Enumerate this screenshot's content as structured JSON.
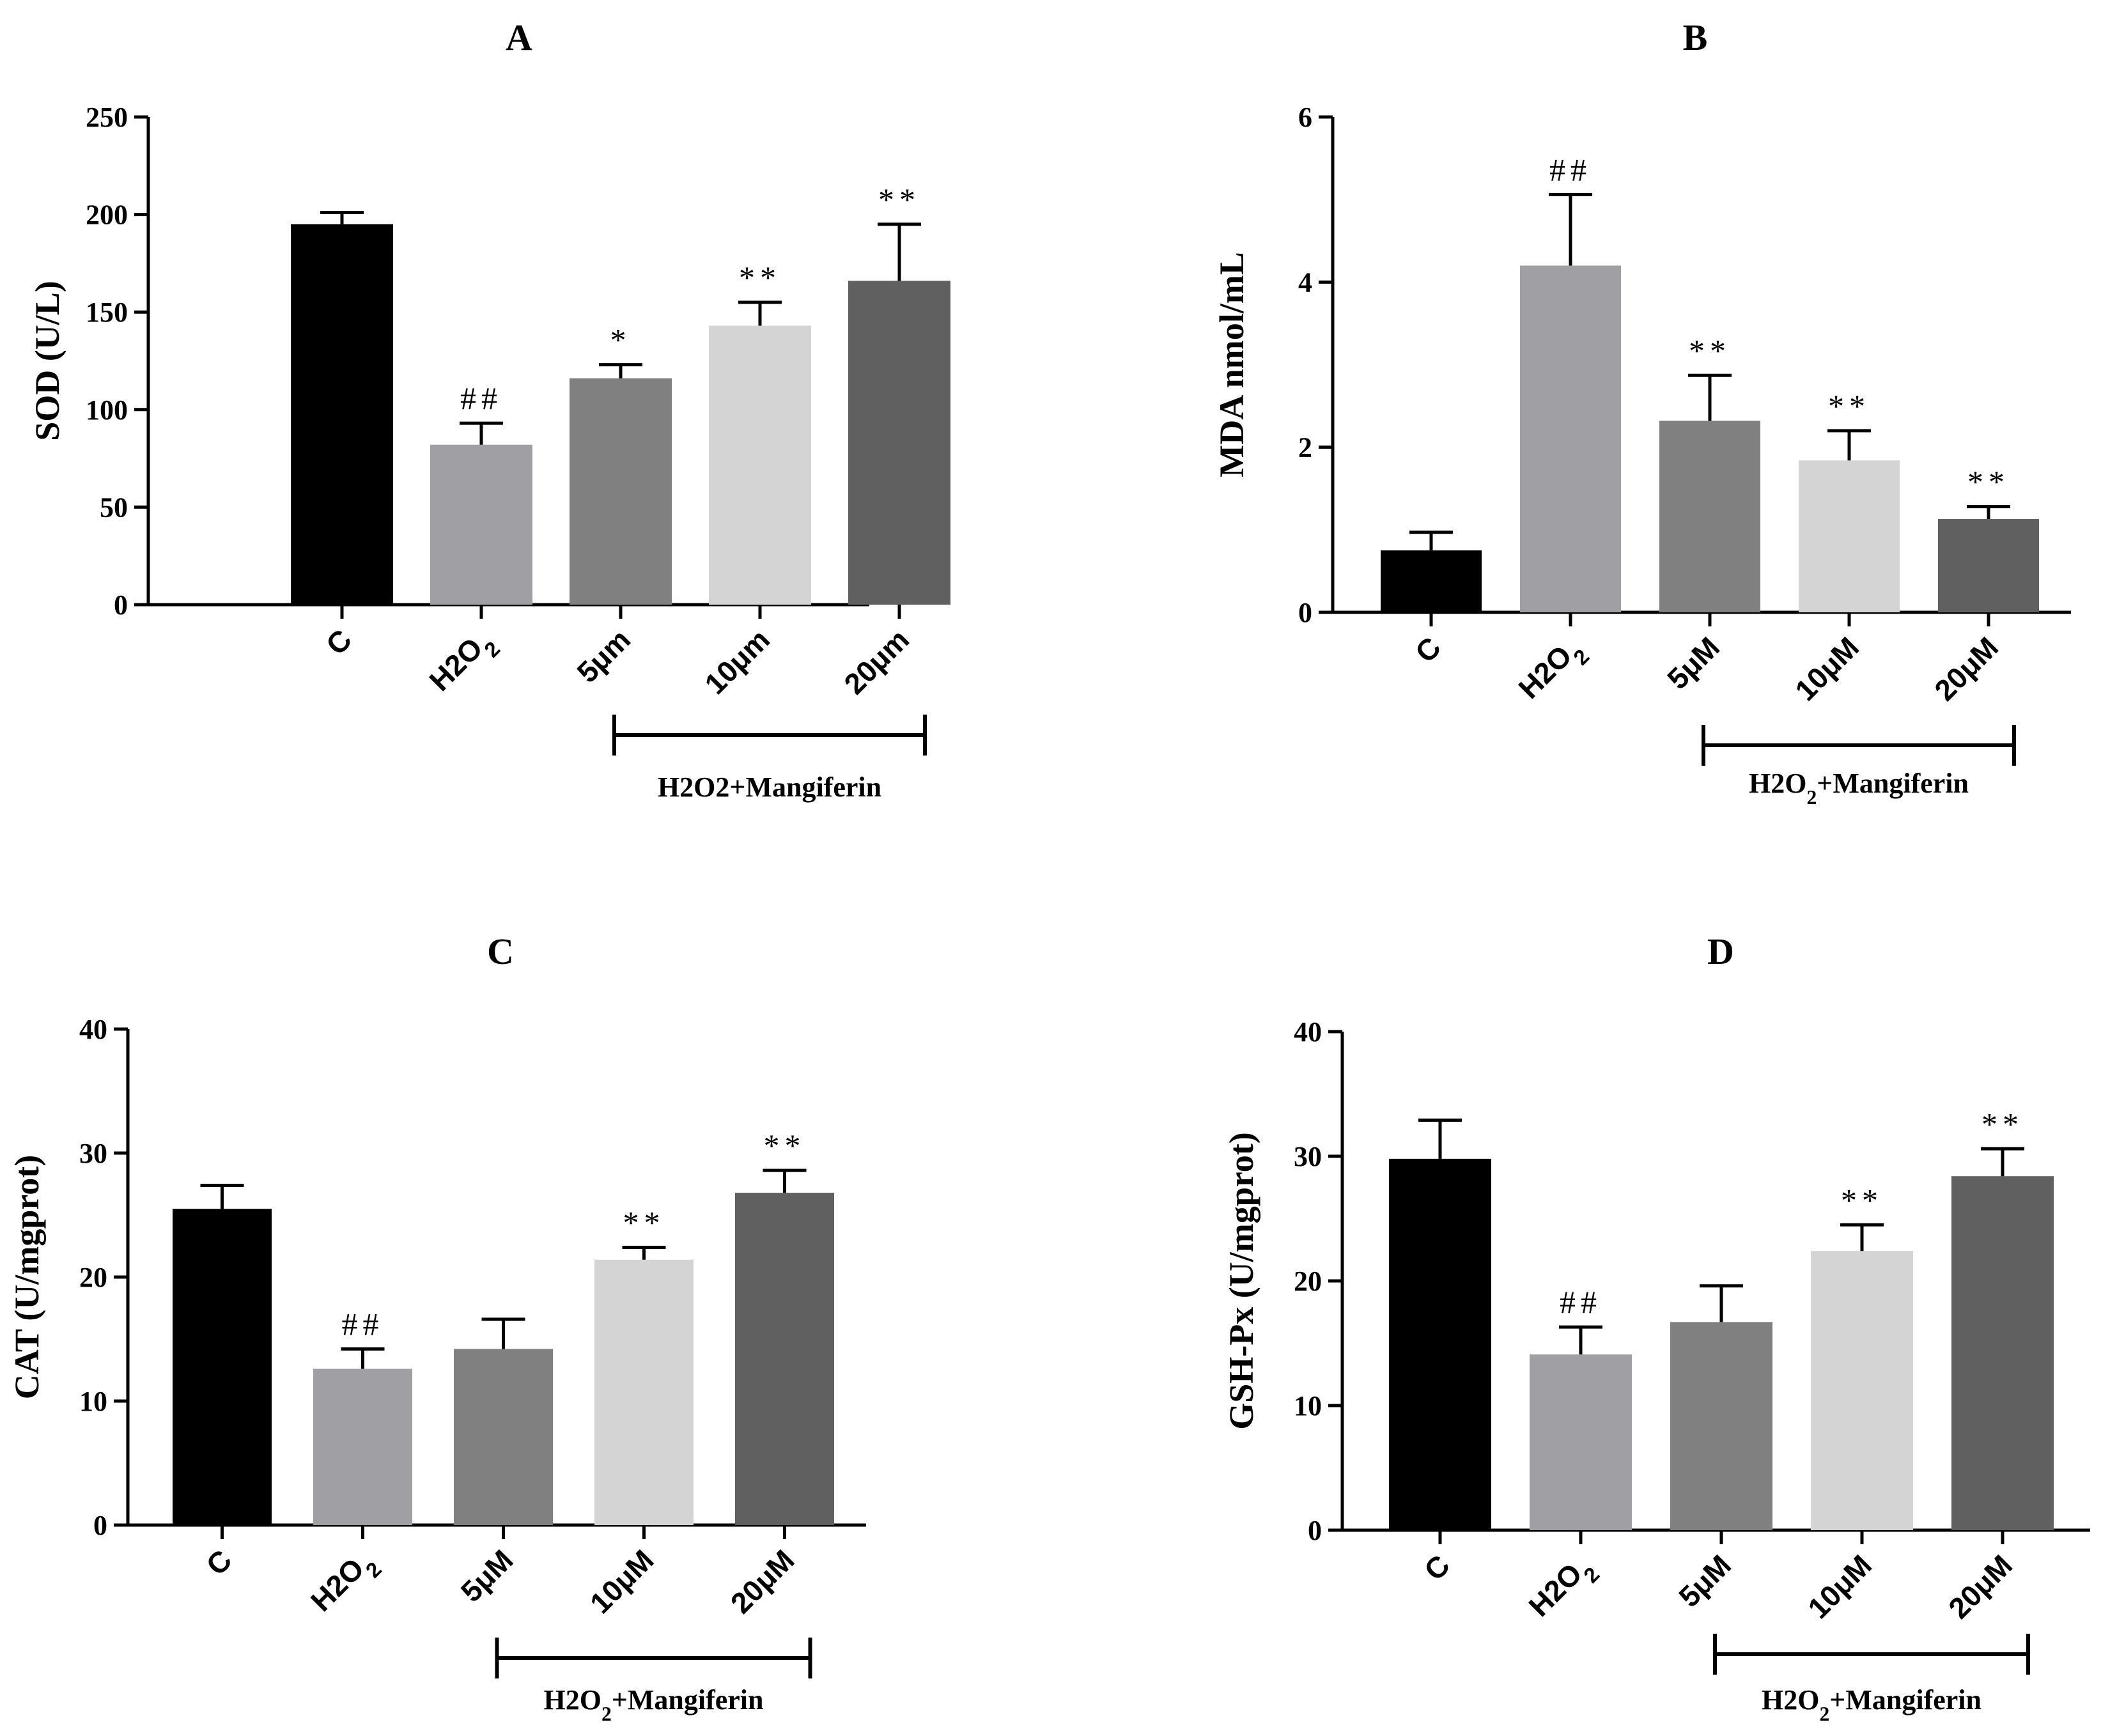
{
  "chart_data": [
    {
      "type": "bar",
      "panel": "A",
      "title": "A",
      "ylabel": "SOD (U/L)",
      "ylim": [
        0,
        250
      ],
      "yticks": [
        0,
        50,
        100,
        150,
        200,
        250
      ],
      "categories": [
        "C",
        "H2O2",
        "5μm",
        "10μm",
        "20μm"
      ],
      "values": [
        195,
        82,
        116,
        143,
        166
      ],
      "errors": [
        6,
        11,
        7,
        12,
        29
      ],
      "colors": [
        "#000000",
        "#a0a0a4",
        "#808080",
        "#d4d4d4",
        "#606060"
      ],
      "significance": [
        "",
        "##",
        "*",
        "**",
        "**"
      ],
      "group_label": "H2O2+Mangiferin"
    },
    {
      "type": "bar",
      "panel": "B",
      "title": "B",
      "ylabel": "MDA nmol/mL",
      "ylim": [
        0,
        6
      ],
      "yticks": [
        0,
        2,
        4,
        6
      ],
      "categories": [
        "C",
        "H2O2",
        "5μM",
        "10μM",
        "20μM"
      ],
      "values": [
        0.75,
        4.2,
        2.32,
        1.84,
        1.13
      ],
      "errors": [
        0.22,
        0.86,
        0.55,
        0.36,
        0.15
      ],
      "colors": [
        "#000000",
        "#a0a0a4",
        "#808080",
        "#d4d4d4",
        "#606060"
      ],
      "significance": [
        "",
        "##",
        "**",
        "**",
        "**"
      ],
      "group_label": "H2O2+Mangiferin"
    },
    {
      "type": "bar",
      "panel": "C",
      "title": "C",
      "ylabel": "CAT (U/mgprot)",
      "ylim": [
        0,
        40
      ],
      "yticks": [
        0,
        10,
        20,
        30,
        40
      ],
      "categories": [
        "C",
        "H2O2",
        "5μM",
        "10μM",
        "20μM"
      ],
      "values": [
        25.5,
        12.6,
        14.2,
        21.4,
        26.8
      ],
      "errors": [
        1.9,
        1.6,
        2.4,
        1.0,
        1.8
      ],
      "colors": [
        "#000000",
        "#a0a0a4",
        "#808080",
        "#d4d4d4",
        "#606060"
      ],
      "significance": [
        "",
        "##",
        "",
        "**",
        "**"
      ],
      "group_label": "H2O2+Mangiferin"
    },
    {
      "type": "bar",
      "panel": "D",
      "title": "D",
      "ylabel": "GSH-Px (U/mgprot)",
      "ylim": [
        0,
        40
      ],
      "yticks": [
        0,
        10,
        20,
        30,
        40
      ],
      "categories": [
        "C",
        "H2O2",
        "5μM",
        "10μM",
        "20μM"
      ],
      "values": [
        29.8,
        14.1,
        16.7,
        22.4,
        28.4
      ],
      "errors": [
        3.1,
        2.2,
        2.9,
        2.1,
        2.2
      ],
      "colors": [
        "#000000",
        "#a0a0a4",
        "#808080",
        "#d4d4d4",
        "#606060"
      ],
      "significance": [
        "",
        "##",
        "",
        "**",
        "**"
      ],
      "group_label": "H2O2+Mangiferin"
    }
  ]
}
